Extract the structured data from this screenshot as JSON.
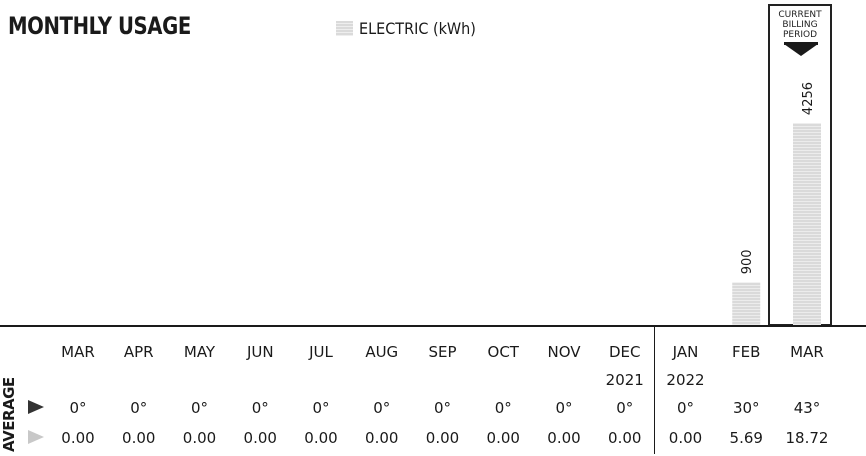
{
  "title": "MONTHLY USAGE",
  "legend": {
    "label": "ELECTRIC (kWh)",
    "swatch_color": "#dadada"
  },
  "billing_period_label": "CURRENT\nBILLING\nPERIOD",
  "average_label": "AVERAGE",
  "temperature_icon": "dark-triangle-icon",
  "usage_icon": "light-triangle-icon",
  "chart_data": {
    "type": "bar",
    "categories": [
      "MAR",
      "APR",
      "MAY",
      "JUN",
      "JUL",
      "AUG",
      "SEP",
      "OCT",
      "NOV",
      "DEC",
      "JAN",
      "FEB",
      "MAR"
    ],
    "year_labels": [
      "",
      "",
      "",
      "",
      "",
      "",
      "",
      "",
      "",
      "2021",
      "2022",
      "",
      ""
    ],
    "series": [
      {
        "name": "ELECTRIC (kWh)",
        "values": [
          0,
          0,
          0,
          0,
          0,
          0,
          0,
          0,
          0,
          0,
          0,
          900,
          4256
        ],
        "color": "#dadada"
      }
    ],
    "data_labels": [
      "",
      "",
      "",
      "",
      "",
      "",
      "",
      "",
      "",
      "",
      "",
      "900",
      "4256"
    ],
    "average_temperatures": [
      "0°",
      "0°",
      "0°",
      "0°",
      "0°",
      "0°",
      "0°",
      "0°",
      "0°",
      "0°",
      "0°",
      "30°",
      "43°"
    ],
    "average_daily_usage": [
      "0.00",
      "0.00",
      "0.00",
      "0.00",
      "0.00",
      "0.00",
      "0.00",
      "0.00",
      "0.00",
      "0.00",
      "0.00",
      "5.69",
      "18.72"
    ],
    "current_billing_period_index": 12,
    "ylim": [
      0,
      6850
    ],
    "grid": false
  }
}
